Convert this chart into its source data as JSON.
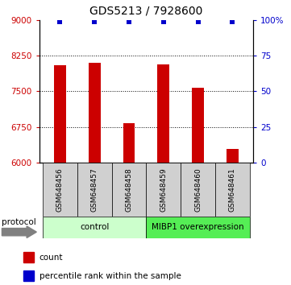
{
  "title": "GDS5213 / 7928600",
  "samples": [
    "GSM648456",
    "GSM648457",
    "GSM648458",
    "GSM648459",
    "GSM648460",
    "GSM648461"
  ],
  "counts": [
    8050,
    8100,
    6820,
    8060,
    7580,
    6280
  ],
  "percentile_ranks": [
    99,
    99,
    99,
    99,
    99,
    99
  ],
  "ylim_left": [
    6000,
    9000
  ],
  "yticks_left": [
    6000,
    6750,
    7500,
    8250,
    9000
  ],
  "yticks_right": [
    0,
    25,
    50,
    75,
    100
  ],
  "ylim_right": [
    0,
    100
  ],
  "bar_color": "#cc0000",
  "dot_color": "#0000cc",
  "background_color": "#ffffff",
  "groups": [
    {
      "label": "control",
      "color": "#bbffbb",
      "color2": "#ccffcc"
    },
    {
      "label": "MIBP1 overexpression",
      "color": "#44ee44",
      "color2": "#55ee55"
    }
  ],
  "protocol_label": "protocol",
  "legend_count_label": "count",
  "legend_percentile_label": "percentile rank within the sample",
  "title_fontsize": 10,
  "tick_label_color_left": "#cc0000",
  "tick_label_color_right": "#0000cc",
  "sample_box_color": "#d0d0d0",
  "group_control_color": "#ccffcc",
  "group_mibp1_color": "#55ee55"
}
